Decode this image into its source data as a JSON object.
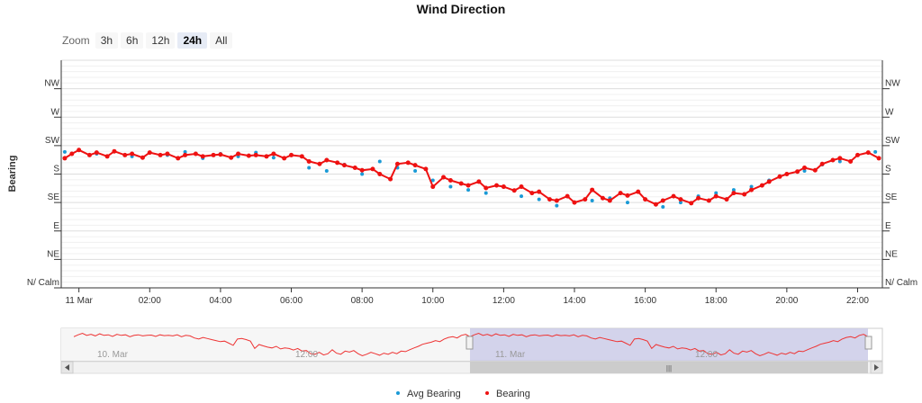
{
  "title": "Wind Direction",
  "zoom": {
    "label": "Zoom",
    "buttons": [
      "3h",
      "6h",
      "12h",
      "24h",
      "All"
    ],
    "selected": "24h"
  },
  "colors": {
    "avg_bearing": "#1a9ad6",
    "bearing": "#ee1111",
    "navigator_selection": "#c8c8e6",
    "navigator_outside": "#f6f6f6"
  },
  "chart_data": {
    "type": "scatter",
    "title": "Wind Direction",
    "ylabel": "Bearing",
    "y_ticks": [
      {
        "value": 0,
        "label": "N/ Calm"
      },
      {
        "value": 45,
        "label": "NE"
      },
      {
        "value": 90,
        "label": "E"
      },
      {
        "value": 135,
        "label": "SE"
      },
      {
        "value": 180,
        "label": "S"
      },
      {
        "value": 225,
        "label": "SW"
      },
      {
        "value": 270,
        "label": "W"
      },
      {
        "value": 315,
        "label": "NW"
      }
    ],
    "ylim": [
      0,
      360
    ],
    "x_ticks": [
      "11 Mar",
      "02:00",
      "04:00",
      "06:00",
      "08:00",
      "10:00",
      "12:00",
      "14:00",
      "16:00",
      "18:00",
      "20:00",
      "22:00"
    ],
    "xlim_hours": [
      -0.5,
      22.7
    ],
    "grid": true,
    "legend_position": "bottom-center",
    "series": [
      {
        "name": "Avg Bearing",
        "style": "scatter",
        "x": [
          -0.4,
          0.0,
          0.5,
          1.0,
          1.5,
          2.0,
          2.5,
          3.0,
          3.5,
          4.0,
          4.5,
          5.0,
          5.5,
          6.0,
          6.5,
          7.0,
          7.5,
          8.0,
          8.5,
          9.0,
          9.5,
          10.0,
          10.5,
          11.0,
          11.5,
          12.0,
          12.5,
          13.0,
          13.5,
          14.0,
          14.5,
          15.0,
          15.5,
          16.0,
          16.5,
          17.0,
          17.5,
          18.0,
          18.5,
          19.0,
          19.5,
          20.0,
          20.5,
          21.0,
          21.5,
          22.0,
          22.5
        ],
        "y": [
          215,
          218,
          212,
          216,
          208,
          214,
          210,
          215,
          205,
          212,
          208,
          214,
          206,
          210,
          190,
          185,
          195,
          180,
          200,
          190,
          185,
          170,
          160,
          155,
          150,
          160,
          145,
          140,
          130,
          135,
          138,
          142,
          135,
          140,
          128,
          135,
          145,
          150,
          155,
          160,
          170,
          180,
          185,
          195,
          200,
          210,
          215
        ]
      },
      {
        "name": "Bearing",
        "style": "line-markers",
        "x": [
          -0.4,
          -0.2,
          0.0,
          0.3,
          0.5,
          0.8,
          1.0,
          1.3,
          1.5,
          1.8,
          2.0,
          2.3,
          2.5,
          2.8,
          3.0,
          3.3,
          3.5,
          3.8,
          4.0,
          4.3,
          4.5,
          4.8,
          5.0,
          5.3,
          5.5,
          5.8,
          6.0,
          6.3,
          6.5,
          6.8,
          7.0,
          7.3,
          7.5,
          7.8,
          8.0,
          8.3,
          8.5,
          8.8,
          9.0,
          9.3,
          9.5,
          9.8,
          10.0,
          10.3,
          10.5,
          10.8,
          11.0,
          11.3,
          11.5,
          11.8,
          12.0,
          12.3,
          12.5,
          12.8,
          13.0,
          13.3,
          13.5,
          13.8,
          14.0,
          14.3,
          14.5,
          14.8,
          15.0,
          15.3,
          15.5,
          15.8,
          16.0,
          16.3,
          16.5,
          16.8,
          17.0,
          17.3,
          17.5,
          17.8,
          18.0,
          18.3,
          18.5,
          18.8,
          19.0,
          19.3,
          19.5,
          19.8,
          20.0,
          20.3,
          20.5,
          20.8,
          21.0,
          21.3,
          21.5,
          21.8,
          22.0,
          22.3,
          22.6
        ],
        "y": [
          205,
          212,
          218,
          210,
          214,
          208,
          216,
          210,
          212,
          206,
          214,
          210,
          212,
          205,
          210,
          212,
          208,
          210,
          211,
          206,
          212,
          209,
          210,
          208,
          212,
          205,
          210,
          208,
          200,
          196,
          202,
          198,
          194,
          190,
          186,
          188,
          180,
          172,
          196,
          198,
          194,
          188,
          160,
          175,
          170,
          165,
          162,
          168,
          158,
          162,
          160,
          154,
          160,
          150,
          152,
          140,
          138,
          145,
          135,
          140,
          155,
          142,
          138,
          150,
          146,
          152,
          140,
          132,
          138,
          145,
          140,
          134,
          142,
          138,
          145,
          140,
          150,
          148,
          155,
          162,
          168,
          176,
          180,
          184,
          190,
          186,
          196,
          202,
          205,
          200,
          210,
          214,
          205
        ]
      }
    ],
    "navigator": {
      "tick_labels": [
        "10. Mar",
        "12:00",
        "11. Mar",
        "12:00"
      ],
      "series_name": "Bearing"
    }
  },
  "legend": {
    "items": [
      "Avg Bearing",
      "Bearing"
    ]
  }
}
